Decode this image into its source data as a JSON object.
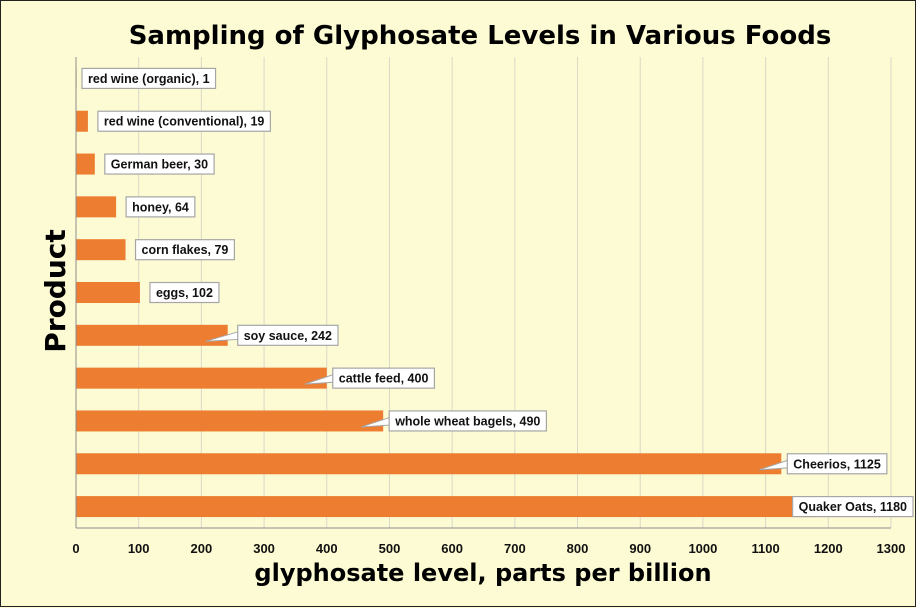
{
  "chart_data": {
    "type": "bar",
    "orientation": "horizontal",
    "title": "Sampling of Glyphosate Levels in Various Foods",
    "xlabel": "glyphosate level, parts per billion",
    "ylabel": "Product",
    "xlim": [
      0,
      1300
    ],
    "xticks": [
      0,
      100,
      200,
      300,
      400,
      500,
      600,
      700,
      800,
      900,
      1000,
      1100,
      1200,
      1300
    ],
    "grid": "vertical",
    "legend": "none",
    "categories": [
      "red wine (organic)",
      "red wine (conventional)",
      "German beer",
      "honey",
      "corn flakes",
      "eggs",
      "soy sauce",
      "cattle feed",
      "whole wheat bagels",
      "Cheerios",
      "Quaker Oats"
    ],
    "values": [
      1,
      19,
      30,
      64,
      79,
      102,
      242,
      400,
      490,
      1125,
      1180
    ],
    "data_labels": [
      "red wine (organic), 1",
      "red wine (conventional), 19",
      "German beer, 30",
      "honey, 64",
      "corn flakes, 79",
      "eggs, 102",
      "soy sauce, 242",
      "cattle feed, 400",
      "whole wheat bagels, 490",
      "Cheerios, 1125",
      "Quaker Oats, 1180"
    ],
    "colors": {
      "bar": "#ed7d31",
      "background": "#fdfbd3",
      "grid": "#d9d9c8",
      "label_border": "#a6a6a6"
    }
  }
}
